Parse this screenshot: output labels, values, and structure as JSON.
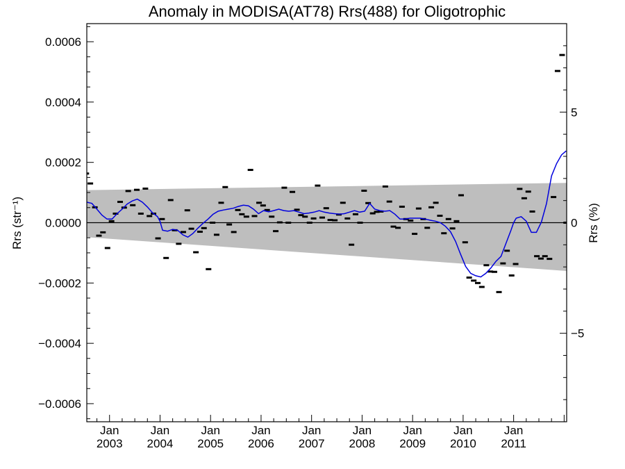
{
  "chart_data": {
    "type": "scatter",
    "title": "Anomaly in MODISA(AT78) Rrs(488) for Oligotrophic",
    "ylabel_left": "Rrs (str⁻¹)",
    "ylabel_right": "Rrs (%)",
    "xlabel": "",
    "x_range": [
      2002.55,
      2012.05
    ],
    "ylim": [
      -0.00066,
      0.00066
    ],
    "ylim_right": [
      -9.0,
      9.0
    ],
    "x_ticks": [
      {
        "label": "Jan\n2003",
        "value": 2003
      },
      {
        "label": "Jan\n2004",
        "value": 2004
      },
      {
        "label": "Jan\n2005",
        "value": 2005
      },
      {
        "label": "Jan\n2006",
        "value": 2006
      },
      {
        "label": "Jan\n2007",
        "value": 2007
      },
      {
        "label": "Jan\n2008",
        "value": 2008
      },
      {
        "label": "Jan\n2009",
        "value": 2009
      },
      {
        "label": "Jan\n2010",
        "value": 2010
      },
      {
        "label": "Jan\n2011",
        "value": 2011
      }
    ],
    "y_ticks_left": [
      {
        "label": "0.0006",
        "value": 0.0006
      },
      {
        "label": "0.0004",
        "value": 0.0004
      },
      {
        "label": "0.0002",
        "value": 0.0002
      },
      {
        "label": "0.0000",
        "value": 0.0
      },
      {
        "label": "−0.0002",
        "value": -0.0002
      },
      {
        "label": "−0.0004",
        "value": -0.0004
      },
      {
        "label": "−0.0006",
        "value": -0.0006
      }
    ],
    "y_ticks_right": [
      {
        "label": "5",
        "value": 5
      },
      {
        "label": "0",
        "value": 0
      },
      {
        "label": "−5",
        "value": -5
      }
    ],
    "uncertainty_band": {
      "x": [
        2002.55,
        2012.05
      ],
      "upper": [
        0.000108,
        0.000132
      ],
      "lower": [
        -4.8e-05,
        -0.00016
      ]
    },
    "colors": {
      "band": "#bebebe",
      "line": "#0000dd",
      "marks": "#000000",
      "zero_line": "#000000"
    },
    "series": [
      {
        "type": "scatter",
        "x": [
          2002.54,
          2002.62,
          2002.71,
          2002.79,
          2002.87,
          2002.96,
          2003.04,
          2003.12,
          2003.21,
          2003.29,
          2003.37,
          2003.46,
          2003.54,
          2003.62,
          2003.71,
          2003.79,
          2003.87,
          2003.96,
          2004.04,
          2004.12,
          2004.21,
          2004.29,
          2004.37,
          2004.46,
          2004.54,
          2004.62,
          2004.71,
          2004.79,
          2004.87,
          2004.96,
          2005.04,
          2005.12,
          2005.21,
          2005.29,
          2005.37,
          2005.46,
          2005.54,
          2005.62,
          2005.71,
          2005.79,
          2005.87,
          2005.96,
          2006.04,
          2006.12,
          2006.21,
          2006.29,
          2006.37,
          2006.46,
          2006.54,
          2006.62,
          2006.71,
          2006.79,
          2006.87,
          2006.96,
          2007.04,
          2007.12,
          2007.21,
          2007.29,
          2007.37,
          2007.46,
          2007.54,
          2007.62,
          2007.71,
          2007.79,
          2007.87,
          2007.96,
          2008.04,
          2008.12,
          2008.21,
          2008.29,
          2008.37,
          2008.46,
          2008.54,
          2008.62,
          2008.71,
          2008.79,
          2008.87,
          2008.96,
          2009.04,
          2009.12,
          2009.21,
          2009.29,
          2009.37,
          2009.46,
          2009.54,
          2009.62,
          2009.71,
          2009.79,
          2009.87,
          2009.96,
          2010.04,
          2010.12,
          2010.21,
          2010.29,
          2010.37,
          2010.46,
          2010.54,
          2010.62,
          2010.71,
          2010.79,
          2010.87,
          2010.96,
          2011.04,
          2011.12,
          2011.21,
          2011.29,
          2011.37,
          2011.46,
          2011.54,
          2011.62,
          2011.71,
          2011.79,
          2011.87,
          2011.96,
          2012.04
        ],
        "y": [
          0.000163,
          0.00013,
          5.1e-05,
          -4.3e-05,
          -3.2e-05,
          -8.4e-05,
          5e-06,
          3e-05,
          6.9e-05,
          5e-05,
          0.000105,
          5.8e-05,
          0.000109,
          3e-05,
          0.000113,
          2.2e-05,
          3e-05,
          -5.2e-05,
          1.2e-05,
          -0.000117,
          7.5e-05,
          -2.5e-05,
          -7e-05,
          -3.1e-05,
          4.1e-05,
          -2e-05,
          -9.8e-05,
          -3e-05,
          -1.8e-05,
          -0.000154,
          0.0,
          -4e-05,
          6.6e-05,
          0.000118,
          -6e-06,
          -3.1e-05,
          4.2e-05,
          2.8e-05,
          2e-05,
          0.000175,
          2.2e-05,
          6.6e-05,
          5.7e-05,
          4.2e-05,
          2e-05,
          -2.8e-05,
          1e-06,
          0.000116,
          0.0,
          0.000102,
          4.3e-05,
          2.5e-05,
          2e-05,
          0.0,
          1.4e-05,
          0.000123,
          1.7e-05,
          4.8e-05,
          9e-06,
          8e-06,
          2.7e-05,
          6.6e-05,
          1.4e-05,
          -7.3e-05,
          2.8e-05,
          0.0,
          0.000106,
          6.5e-05,
          3.1e-05,
          3.6e-05,
          3.7e-05,
          0.00012,
          7e-05,
          -1.3e-05,
          -1.7e-05,
          5.3e-05,
          1.2e-05,
          7e-06,
          -3.7e-05,
          4.7e-05,
          1.2e-05,
          -1.7e-05,
          5.1e-05,
          6.6e-05,
          2.3e-05,
          -3.5e-05,
          1.2e-05,
          -1.9e-05,
          5e-06,
          9.1e-05,
          -6.5e-05,
          -0.000182,
          -0.000192,
          -0.0002,
          -0.000213,
          -0.000141,
          -0.000162,
          -0.000163,
          -0.00023,
          -0.000135,
          -9.3e-05,
          -0.000175,
          -0.000137,
          0.000112,
          8.1e-05,
          0.000103,
          3.7e-05,
          -0.000111,
          -0.000119,
          -0.000111,
          -0.00012,
          8.5e-05,
          0.000503,
          0.000556,
          0.0
        ]
      },
      {
        "type": "line",
        "x": [
          2002.55,
          2002.65,
          2002.75,
          2002.85,
          2002.95,
          2003.05,
          2003.15,
          2003.25,
          2003.35,
          2003.45,
          2003.55,
          2003.65,
          2003.75,
          2003.85,
          2003.95,
          2004.0,
          2004.05,
          2004.15,
          2004.25,
          2004.35,
          2004.45,
          2004.55,
          2004.65,
          2004.75,
          2004.85,
          2004.95,
          2005.05,
          2005.15,
          2005.25,
          2005.35,
          2005.45,
          2005.55,
          2005.65,
          2005.75,
          2005.85,
          2005.95,
          2006.05,
          2006.15,
          2006.25,
          2006.35,
          2006.45,
          2006.55,
          2006.65,
          2006.75,
          2006.85,
          2006.95,
          2007.05,
          2007.15,
          2007.25,
          2007.35,
          2007.45,
          2007.55,
          2007.65,
          2007.75,
          2007.85,
          2007.95,
          2008.05,
          2008.15,
          2008.25,
          2008.35,
          2008.45,
          2008.55,
          2008.65,
          2008.75,
          2008.85,
          2008.95,
          2009.05,
          2009.15,
          2009.25,
          2009.35,
          2009.45,
          2009.55,
          2009.65,
          2009.75,
          2009.85,
          2009.95,
          2010.05,
          2010.15,
          2010.25,
          2010.35,
          2010.45,
          2010.55,
          2010.65,
          2010.75,
          2010.85,
          2010.95,
          2011.0,
          2011.05,
          2011.15,
          2011.25,
          2011.35,
          2011.45,
          2011.55,
          2011.65,
          2011.75,
          2011.85,
          2011.95,
          2012.04
        ],
        "y": [
          6.8e-05,
          6.4e-05,
          4.5e-05,
          2.5e-05,
          1.2e-05,
          1.2e-05,
          3e-05,
          4.5e-05,
          6.2e-05,
          7.2e-05,
          7.8e-05,
          6.8e-05,
          5.2e-05,
          3.3e-05,
          2e-05,
          4e-06,
          -2.5e-05,
          -2.8e-05,
          -2.2e-05,
          -2.5e-05,
          -4e-05,
          -4.8e-05,
          -3.6e-05,
          -1.8e-05,
          -2e-06,
          1.2e-05,
          2.8e-05,
          3.8e-05,
          4.2e-05,
          4.5e-05,
          4.8e-05,
          5.4e-05,
          5.8e-05,
          5.6e-05,
          4.5e-05,
          3e-05,
          4e-05,
          3.6e-05,
          4e-05,
          4.5e-05,
          4e-05,
          3.8e-05,
          4e-05,
          3.5e-05,
          3e-05,
          3.2e-05,
          3.5e-05,
          4e-05,
          3.5e-05,
          3.2e-05,
          3e-05,
          2.8e-05,
          3e-05,
          3.5e-05,
          4e-05,
          3.5e-05,
          3.8e-05,
          6.4e-05,
          4.5e-05,
          4e-05,
          3.8e-05,
          4e-05,
          2.8e-05,
          1.2e-05,
          1.2e-05,
          1.5e-05,
          1.5e-05,
          1.5e-05,
          1.2e-05,
          8e-06,
          5e-06,
          0.0,
          -1.2e-05,
          -3e-05,
          -6.2e-05,
          -0.000105,
          -0.000145,
          -0.000168,
          -0.000176,
          -0.00018,
          -0.000168,
          -0.00015,
          -0.000128,
          -0.000112,
          -6.8e-05,
          -2.4e-05,
          0.0,
          1.5e-05,
          2e-05,
          5e-06,
          -3.2e-05,
          -3.2e-05,
          2e-06,
          6.3e-05,
          0.000155,
          0.000196,
          0.000225,
          0.000238
        ]
      }
    ]
  }
}
